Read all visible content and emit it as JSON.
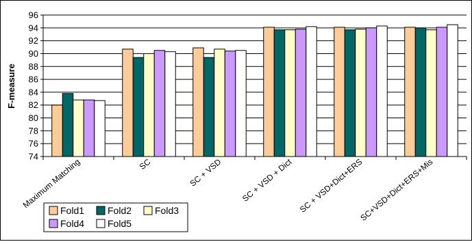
{
  "chart_data": {
    "type": "bar",
    "title": "",
    "xlabel": "",
    "ylabel": "F-measure",
    "ylim": [
      74,
      96
    ],
    "ytick_step": 2,
    "grid": "horizontal",
    "legend_position": "bottom-left",
    "categories": [
      "Maximum Matching",
      "SC",
      "SC + VSD",
      "SC + VSD + Dict",
      "SC + VSD+Dict+ERS",
      "SC+VSD+Dict+ERS+Mis"
    ],
    "series": [
      {
        "name": "Fold1",
        "color": "#FFCC99",
        "values": [
          82.0,
          90.7,
          90.9,
          94.1,
          94.1,
          94.1
        ]
      },
      {
        "name": "Fold2",
        "color": "#006666",
        "values": [
          83.8,
          89.4,
          89.4,
          93.7,
          93.7,
          94.0
        ]
      },
      {
        "name": "Fold3",
        "color": "#FFFFCC",
        "values": [
          82.8,
          90.0,
          90.7,
          93.7,
          93.8,
          93.7
        ]
      },
      {
        "name": "Fold4",
        "color": "#CC99FF",
        "values": [
          82.8,
          90.5,
          90.4,
          93.8,
          94.0,
          94.1
        ]
      },
      {
        "name": "Fold5",
        "color": "#FFFFFF",
        "values": [
          82.7,
          90.3,
          90.5,
          94.2,
          94.3,
          94.5
        ]
      }
    ]
  }
}
